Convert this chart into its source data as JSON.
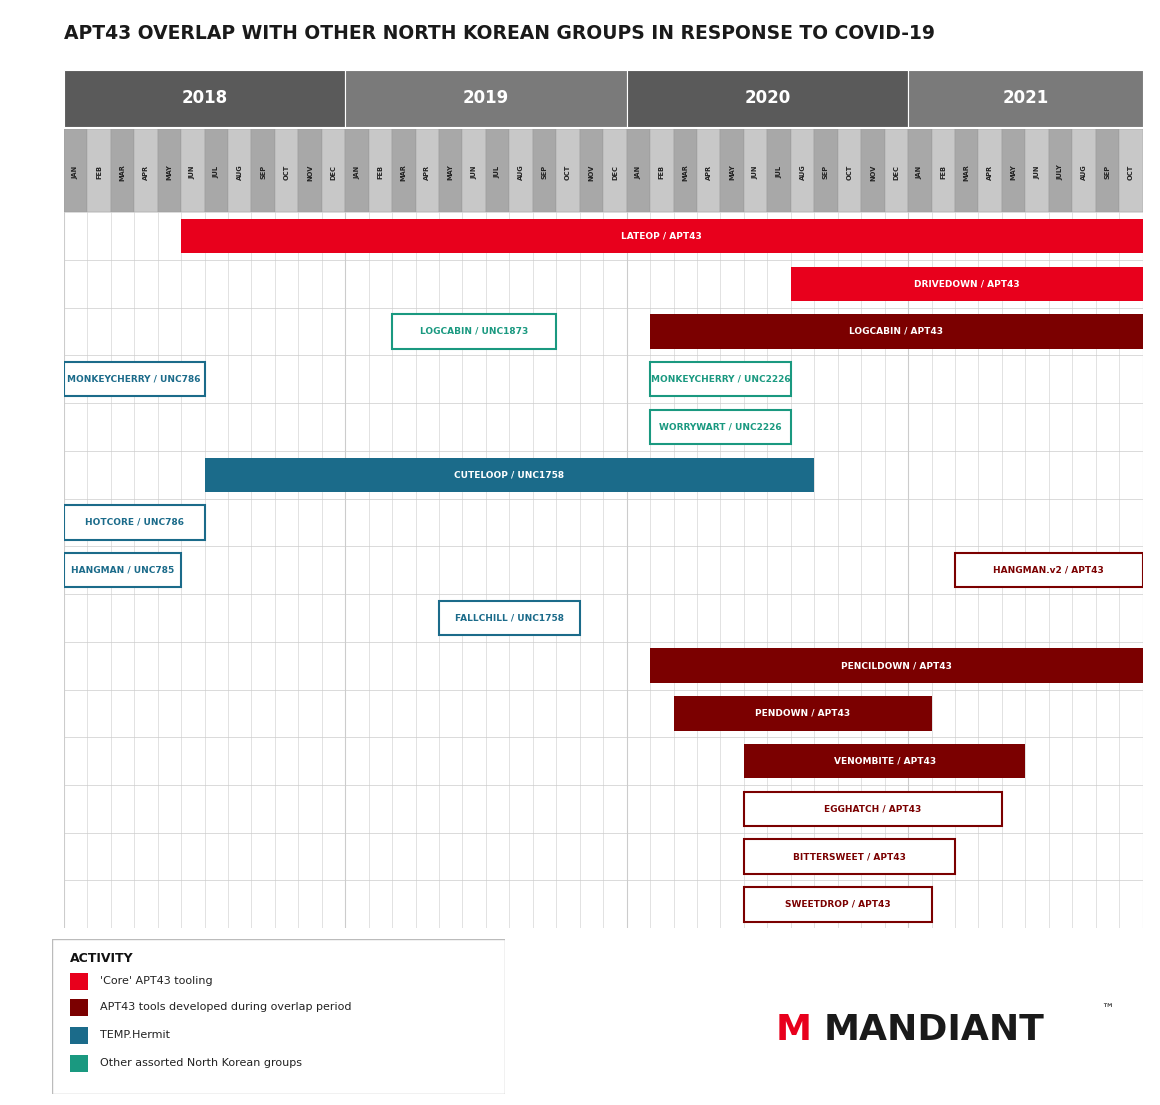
{
  "title": "APT43 OVERLAP WITH OTHER NORTH KOREAN GROUPS IN RESPONSE TO COVID-19",
  "years": [
    "2018",
    "2019",
    "2020",
    "2021"
  ],
  "year_starts": [
    0,
    12,
    24,
    36
  ],
  "year_ends": [
    12,
    24,
    36,
    46
  ],
  "months": [
    "JAN",
    "FEB",
    "MAR",
    "APR",
    "MAY",
    "JUN",
    "JUL",
    "AUG",
    "SEP",
    "OCT",
    "NOV",
    "DEC",
    "JAN",
    "FEB",
    "MAR",
    "APR",
    "MAY",
    "JUN",
    "JUL",
    "AUG",
    "SEP",
    "OCT",
    "NOV",
    "DEC",
    "JAN",
    "FEB",
    "MAR",
    "APR",
    "MAY",
    "JUN",
    "JUL",
    "AUG",
    "SEP",
    "OCT",
    "NOV",
    "DEC",
    "JAN",
    "FEB",
    "MAR",
    "APR",
    "MAY",
    "JUN",
    "JULY",
    "AUG",
    "SEP",
    "OCT"
  ],
  "total_months": 46,
  "colors": {
    "core_apt43": "#E8001C",
    "apt43_overlap": "#7B0000",
    "temp_hermit": "#1B6B8A",
    "other_nk": "#1A9980",
    "year_dark": "#5A5A5A",
    "year_light": "#7A7A7A",
    "month_dark": "#A8A8A8",
    "month_light": "#C8C8C8",
    "chart_bg": "#F0F0F0",
    "grid": "#CCCCCC"
  },
  "bars": [
    {
      "label": "LATEOP / APT43",
      "start": 5,
      "end": 46,
      "row": 0,
      "style": "solid",
      "color": "core_apt43"
    },
    {
      "label": "DRIVEDOWN / APT43",
      "start": 31,
      "end": 46,
      "row": 1,
      "style": "solid",
      "color": "core_apt43"
    },
    {
      "label": "LOGCABIN / UNC1873",
      "start": 14,
      "end": 21,
      "row": 2,
      "style": "outline",
      "color": "other_nk"
    },
    {
      "label": "LOGCABIN / APT43",
      "start": 25,
      "end": 46,
      "row": 2,
      "style": "solid",
      "color": "apt43_overlap"
    },
    {
      "label": "MONKEYCHERRY / UNC786",
      "start": 0,
      "end": 6,
      "row": 3,
      "style": "outline",
      "color": "temp_hermit"
    },
    {
      "label": "MONKEYCHERRY / UNC2226",
      "start": 25,
      "end": 31,
      "row": 3,
      "style": "outline",
      "color": "other_nk"
    },
    {
      "label": "WORRYWART / UNC2226",
      "start": 25,
      "end": 31,
      "row": 4,
      "style": "outline",
      "color": "other_nk"
    },
    {
      "label": "CUTELOOP / UNC1758",
      "start": 6,
      "end": 32,
      "row": 5,
      "style": "solid",
      "color": "temp_hermit"
    },
    {
      "label": "HOTCORE / UNC786",
      "start": 0,
      "end": 6,
      "row": 6,
      "style": "outline",
      "color": "temp_hermit"
    },
    {
      "label": "HANGMAN / UNC785",
      "start": 0,
      "end": 5,
      "row": 7,
      "style": "outline",
      "color": "temp_hermit"
    },
    {
      "label": "HANGMAN.v2 / APT43",
      "start": 38,
      "end": 46,
      "row": 7,
      "style": "outline",
      "color": "apt43_overlap"
    },
    {
      "label": "FALLCHILL / UNC1758",
      "start": 16,
      "end": 22,
      "row": 8,
      "style": "outline",
      "color": "temp_hermit"
    },
    {
      "label": "PENCILDOWN / APT43",
      "start": 25,
      "end": 46,
      "row": 9,
      "style": "solid",
      "color": "apt43_overlap"
    },
    {
      "label": "PENDOWN / APT43",
      "start": 26,
      "end": 37,
      "row": 10,
      "style": "solid",
      "color": "apt43_overlap"
    },
    {
      "label": "VENOMBITE / APT43",
      "start": 29,
      "end": 41,
      "row": 11,
      "style": "solid",
      "color": "apt43_overlap"
    },
    {
      "label": "EGGHATCH / APT43",
      "start": 29,
      "end": 40,
      "row": 12,
      "style": "outline",
      "color": "apt43_overlap"
    },
    {
      "label": "BITTERSWEET / APT43",
      "start": 29,
      "end": 38,
      "row": 13,
      "style": "outline",
      "color": "apt43_overlap"
    },
    {
      "label": "SWEETDROP / APT43",
      "start": 29,
      "end": 37,
      "row": 14,
      "style": "outline",
      "color": "apt43_overlap"
    }
  ],
  "n_rows": 15,
  "legend_items": [
    {
      "label": "'Core' APT43 tooling",
      "color": "core_apt43",
      "style": "solid"
    },
    {
      "label": "APT43 tools developed during overlap period",
      "color": "apt43_overlap",
      "style": "solid"
    },
    {
      "label": "TEMP.Hermit",
      "color": "temp_hermit",
      "style": "solid"
    },
    {
      "label": "Other assorted North Korean groups",
      "color": "other_nk",
      "style": "solid"
    }
  ]
}
